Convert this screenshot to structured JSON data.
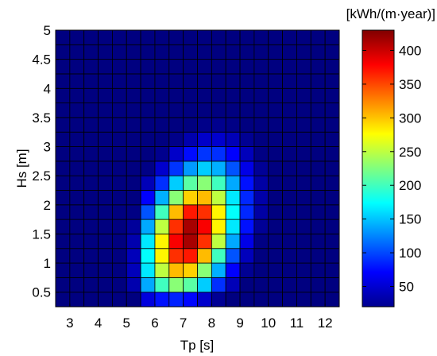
{
  "chart_data": {
    "type": "heatmap",
    "title": "",
    "xlabel": "Tp [s]",
    "ylabel": "Hs [m]",
    "colorbar_label": "[kWh/(m·year)]",
    "xlim": [
      2.5,
      12.5
    ],
    "ylim": [
      0.25,
      5.0
    ],
    "xticks": [
      "3",
      "4",
      "5",
      "6",
      "7",
      "8",
      "9",
      "10",
      "11",
      "12"
    ],
    "yticks": [
      "0.5",
      "1",
      "1.5",
      "2",
      "2.5",
      "3",
      "3.5",
      "4",
      "4.5",
      "5"
    ],
    "colorbar_ticks": [
      "50",
      "100",
      "150",
      "200",
      "250",
      "300",
      "350",
      "400"
    ],
    "zlim": [
      20,
      430
    ],
    "bins": {
      "tp_step": 0.5,
      "hs_step": 0.25,
      "tp_start": 2.5,
      "hs_start": 0.25
    },
    "peak": {
      "tp": 7.25,
      "hs": 1.5,
      "value": 420
    },
    "grid": true,
    "colormap": "jet"
  }
}
